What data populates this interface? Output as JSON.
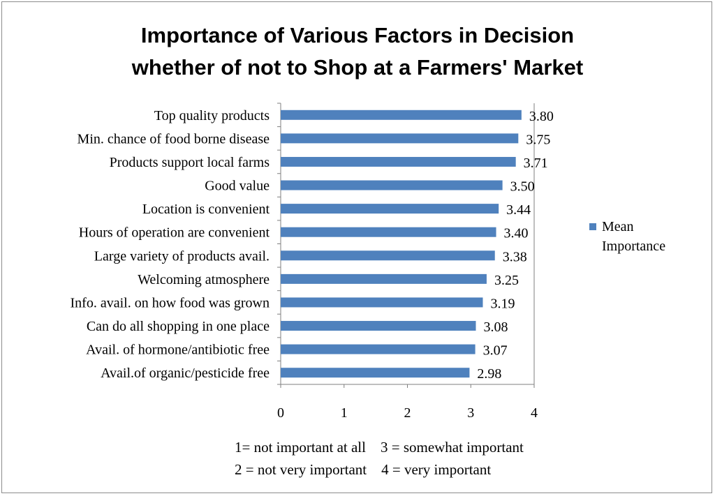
{
  "chart_data": {
    "type": "bar",
    "orientation": "horizontal",
    "title": "Importance of Various Factors in Decision whether of not to Shop at a Farmers' Market",
    "title_lines": [
      "Importance of Various Factors in Decision",
      "whether of not to Shop at a Farmers' Market"
    ],
    "categories": [
      "Top quality products",
      "Min. chance of food borne disease",
      "Products support local farms",
      "Good value",
      "Location is convenient",
      "Hours of operation are convenient",
      "Large variety of products avail.",
      "Welcoming atmosphere",
      "Info. avail. on how food was grown",
      "Can do all shopping in one place",
      "Avail. of hormone/antibiotic free",
      "Avail.of organic/pesticide free"
    ],
    "series": [
      {
        "name": "Mean Importance",
        "values": [
          3.8,
          3.75,
          3.71,
          3.5,
          3.44,
          3.4,
          3.38,
          3.25,
          3.19,
          3.08,
          3.07,
          2.98
        ],
        "value_labels": [
          "3.80",
          "3.75",
          "3.71",
          "3.50",
          "3.44",
          "3.40",
          "3.38",
          "3.25",
          "3.19",
          "3.08",
          "3.07",
          "2.98"
        ]
      }
    ],
    "xlim": [
      0,
      4
    ],
    "xticks": [
      "0",
      "1",
      "2",
      "3",
      "4"
    ],
    "grid": false,
    "legend_position": "right",
    "legend_lines": [
      "Mean",
      "Importance"
    ],
    "bar_color": "#4f81bd",
    "notes": [
      "1= not important at all    3 = somewhat important",
      "2 = not very important    4 = very important"
    ]
  }
}
